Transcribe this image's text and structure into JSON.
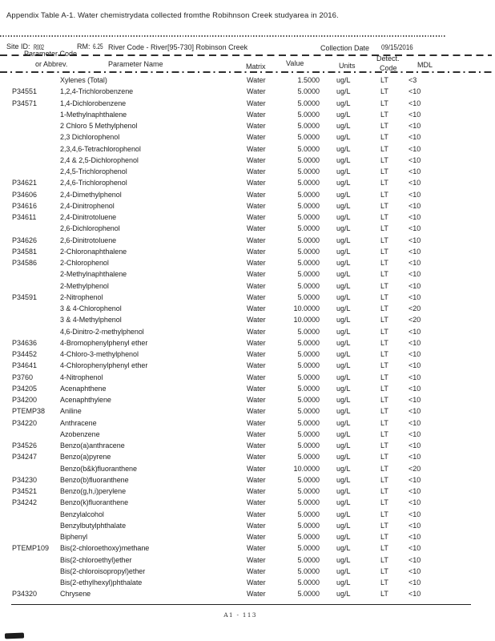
{
  "title": "Appendix Table A-1. Water chemistrydata collected fromthe Robihnson Creek studyarea in 2016.",
  "site_info": {
    "site_id_label": "Site ID:",
    "site_id_value": "R002",
    "rm_label": "RM:",
    "rm_value": "6.25",
    "river_code": "River Code - River[95-730] Robinson Creek",
    "collection_date_label": "Collection Date",
    "collection_date_value": "09/15/2016"
  },
  "columns": {
    "code_line1": "Parameter Code",
    "code_line2": "or Abbrev.",
    "name": "Parameter Name",
    "matrix": "Matrix",
    "value": "Value",
    "units": "Units",
    "detect_line1": "Detect.",
    "detect_line2": "Code",
    "mdl": "MDL"
  },
  "rows": [
    {
      "code": "",
      "name": "Xylenes (Total)",
      "matrix": "Water",
      "value": "1.5000",
      "units": "ug/L",
      "detect": "LT",
      "mdl": "<3"
    },
    {
      "code": "P34551",
      "name": "1,2,4-Trichlorobenzene",
      "matrix": "Water",
      "value": "5.0000",
      "units": "ug/L",
      "detect": "LT",
      "mdl": "<10"
    },
    {
      "code": "P34571",
      "name": "1,4-Dichlorobenzene",
      "matrix": "Water",
      "value": "5.0000",
      "units": "ug/L",
      "detect": "LT",
      "mdl": "<10"
    },
    {
      "code": "",
      "name": "1-Methylnaphthalene",
      "matrix": "Water",
      "value": "5.0000",
      "units": "ug/L",
      "detect": "LT",
      "mdl": "<10"
    },
    {
      "code": "",
      "name": "2 Chloro 5 Methylphenol",
      "matrix": "Water",
      "value": "5.0000",
      "units": "ug/L",
      "detect": "LT",
      "mdl": "<10"
    },
    {
      "code": "",
      "name": "2,3 Dichlorophenol",
      "matrix": "Water",
      "value": "5.0000",
      "units": "ug/L",
      "detect": "LT",
      "mdl": "<10"
    },
    {
      "code": "",
      "name": "2,3,4,6-Tetrachlorophenol",
      "matrix": "Water",
      "value": "5.0000",
      "units": "ug/L",
      "detect": "LT",
      "mdl": "<10"
    },
    {
      "code": "",
      "name": "2,4 & 2,5-Dichlorophenol",
      "matrix": "Water",
      "value": "5.0000",
      "units": "ug/L",
      "detect": "LT",
      "mdl": "<10"
    },
    {
      "code": "",
      "name": "2,4,5-Trichlorophenol",
      "matrix": "Water",
      "value": "5.0000",
      "units": "ug/L",
      "detect": "LT",
      "mdl": "<10"
    },
    {
      "code": "P34621",
      "name": "2,4,6-Trichlorophenol",
      "matrix": "Water",
      "value": "5.0000",
      "units": "ug/L",
      "detect": "LT",
      "mdl": "<10"
    },
    {
      "code": "P34606",
      "name": "2,4-Dimethylphenol",
      "matrix": "Water",
      "value": "5.0000",
      "units": "ug/L",
      "detect": "LT",
      "mdl": "<10"
    },
    {
      "code": "P34616",
      "name": "2,4-Dinitrophenol",
      "matrix": "Water",
      "value": "5.0000",
      "units": "ug/L",
      "detect": "LT",
      "mdl": "<10"
    },
    {
      "code": "P34611",
      "name": "2,4-Dinitrotoluene",
      "matrix": "Water",
      "value": "5.0000",
      "units": "ug/L",
      "detect": "LT",
      "mdl": "<10"
    },
    {
      "code": "",
      "name": "2,6-Dichlorophenol",
      "matrix": "Water",
      "value": "5.0000",
      "units": "ug/L",
      "detect": "LT",
      "mdl": "<10"
    },
    {
      "code": "P34626",
      "name": "2,6-Dinitrotoluene",
      "matrix": "Water",
      "value": "5.0000",
      "units": "ug/L",
      "detect": "LT",
      "mdl": "<10"
    },
    {
      "code": "P34581",
      "name": "2-Chloronaphthalene",
      "matrix": "Water",
      "value": "5.0000",
      "units": "ug/L",
      "detect": "LT",
      "mdl": "<10"
    },
    {
      "code": "P34586",
      "name": "2-Chlorophenol",
      "matrix": "Water",
      "value": "5.0000",
      "units": "ug/L",
      "detect": "LT",
      "mdl": "<10"
    },
    {
      "code": "",
      "name": "2-Methylnaphthalene",
      "matrix": "Water",
      "value": "5.0000",
      "units": "ug/L",
      "detect": "LT",
      "mdl": "<10"
    },
    {
      "code": "",
      "name": "2-Methylphenol",
      "matrix": "Water",
      "value": "5.0000",
      "units": "ug/L",
      "detect": "LT",
      "mdl": "<10"
    },
    {
      "code": "P34591",
      "name": "2-Nitrophenol",
      "matrix": "Water",
      "value": "5.0000",
      "units": "ug/L",
      "detect": "LT",
      "mdl": "<10"
    },
    {
      "code": "",
      "name": "3 & 4-Chlorophenol",
      "matrix": "Water",
      "value": "10.0000",
      "units": "ug/L",
      "detect": "LT",
      "mdl": "<20"
    },
    {
      "code": "",
      "name": "3 & 4-Methylphenol",
      "matrix": "Water",
      "value": "10.0000",
      "units": "ug/L",
      "detect": "LT",
      "mdl": "<20"
    },
    {
      "code": "",
      "name": "4,6-Dinitro-2-methylphenol",
      "matrix": "Water",
      "value": "5.0000",
      "units": "ug/L",
      "detect": "LT",
      "mdl": "<10"
    },
    {
      "code": "P34636",
      "name": "4-Bromophenylphenyl ether",
      "matrix": "Water",
      "value": "5.0000",
      "units": "ug/L",
      "detect": "LT",
      "mdl": "<10"
    },
    {
      "code": "P34452",
      "name": "4-Chloro-3-methylphenol",
      "matrix": "Water",
      "value": "5.0000",
      "units": "ug/L",
      "detect": "LT",
      "mdl": "<10"
    },
    {
      "code": "P34641",
      "name": "4-Chlorophenylphenyl ether",
      "matrix": "Water",
      "value": "5.0000",
      "units": "ug/L",
      "detect": "LT",
      "mdl": "<10"
    },
    {
      "code": "P3760",
      "name": "4-Nitrophenol",
      "matrix": "Water",
      "value": "5.0000",
      "units": "ug/L",
      "detect": "LT",
      "mdl": "<10"
    },
    {
      "code": "P34205",
      "name": "Acenaphthene",
      "matrix": "Water",
      "value": "5.0000",
      "units": "ug/L",
      "detect": "LT",
      "mdl": "<10"
    },
    {
      "code": "P34200",
      "name": "Acenaphthylene",
      "matrix": "Water",
      "value": "5.0000",
      "units": "ug/L",
      "detect": "LT",
      "mdl": "<10"
    },
    {
      "code": "PTEMP38",
      "name": "Aniline",
      "matrix": "Water",
      "value": "5.0000",
      "units": "ug/L",
      "detect": "LT",
      "mdl": "<10"
    },
    {
      "code": "P34220",
      "name": "Anthracene",
      "matrix": "Water",
      "value": "5.0000",
      "units": "ug/L",
      "detect": "LT",
      "mdl": "<10"
    },
    {
      "code": "",
      "name": "Azobenzene",
      "matrix": "Water",
      "value": "5.0000",
      "units": "ug/L",
      "detect": "LT",
      "mdl": "<10"
    },
    {
      "code": "P34526",
      "name": "Benzo(a)anthracene",
      "matrix": "Water",
      "value": "5.0000",
      "units": "ug/L",
      "detect": "LT",
      "mdl": "<10"
    },
    {
      "code": "P34247",
      "name": "Benzo(a)pyrene",
      "matrix": "Water",
      "value": "5.0000",
      "units": "ug/L",
      "detect": "LT",
      "mdl": "<10"
    },
    {
      "code": "",
      "name": "Benzo(b&k)fluoranthene",
      "matrix": "Water",
      "value": "10.0000",
      "units": "ug/L",
      "detect": "LT",
      "mdl": "<20"
    },
    {
      "code": "P34230",
      "name": "Benzo(b)fluoranthene",
      "matrix": "Water",
      "value": "5.0000",
      "units": "ug/L",
      "detect": "LT",
      "mdl": "<10"
    },
    {
      "code": "P34521",
      "name": "Benzo(g,h,i)perylene",
      "matrix": "Water",
      "value": "5.0000",
      "units": "ug/L",
      "detect": "LT",
      "mdl": "<10"
    },
    {
      "code": "P34242",
      "name": "Benzo(k)fluoranthene",
      "matrix": "Water",
      "value": "5.0000",
      "units": "ug/L",
      "detect": "LT",
      "mdl": "<10"
    },
    {
      "code": "",
      "name": "Benzylalcohol",
      "matrix": "Water",
      "value": "5.0000",
      "units": "ug/L",
      "detect": "LT",
      "mdl": "<10"
    },
    {
      "code": "",
      "name": "Benzylbutylphthalate",
      "matrix": "Water",
      "value": "5.0000",
      "units": "ug/L",
      "detect": "LT",
      "mdl": "<10"
    },
    {
      "code": "",
      "name": "Biphenyl",
      "matrix": "Water",
      "value": "5.0000",
      "units": "ug/L",
      "detect": "LT",
      "mdl": "<10"
    },
    {
      "code": "PTEMP109",
      "name": "Bis(2-chloroethoxy)methane",
      "matrix": "Water",
      "value": "5.0000",
      "units": "ug/L",
      "detect": "LT",
      "mdl": "<10"
    },
    {
      "code": "",
      "name": "Bis(2-chloroethyl)ether",
      "matrix": "Water",
      "value": "5.0000",
      "units": "ug/L",
      "detect": "LT",
      "mdl": "<10"
    },
    {
      "code": "",
      "name": "Bis(2-chloroisopropyl)ether",
      "matrix": "Water",
      "value": "5.0000",
      "units": "ug/L",
      "detect": "LT",
      "mdl": "<10"
    },
    {
      "code": "",
      "name": "Bis(2-ethylhexyl)phthalate",
      "matrix": "Water",
      "value": "5.0000",
      "units": "ug/L",
      "detect": "LT",
      "mdl": "<10"
    },
    {
      "code": "P34320",
      "name": "Chrysene",
      "matrix": "Water",
      "value": "5.0000",
      "units": "ug/L",
      "detect": "LT",
      "mdl": "<10"
    }
  ],
  "footer": {
    "page_label": "A1 - 113"
  }
}
